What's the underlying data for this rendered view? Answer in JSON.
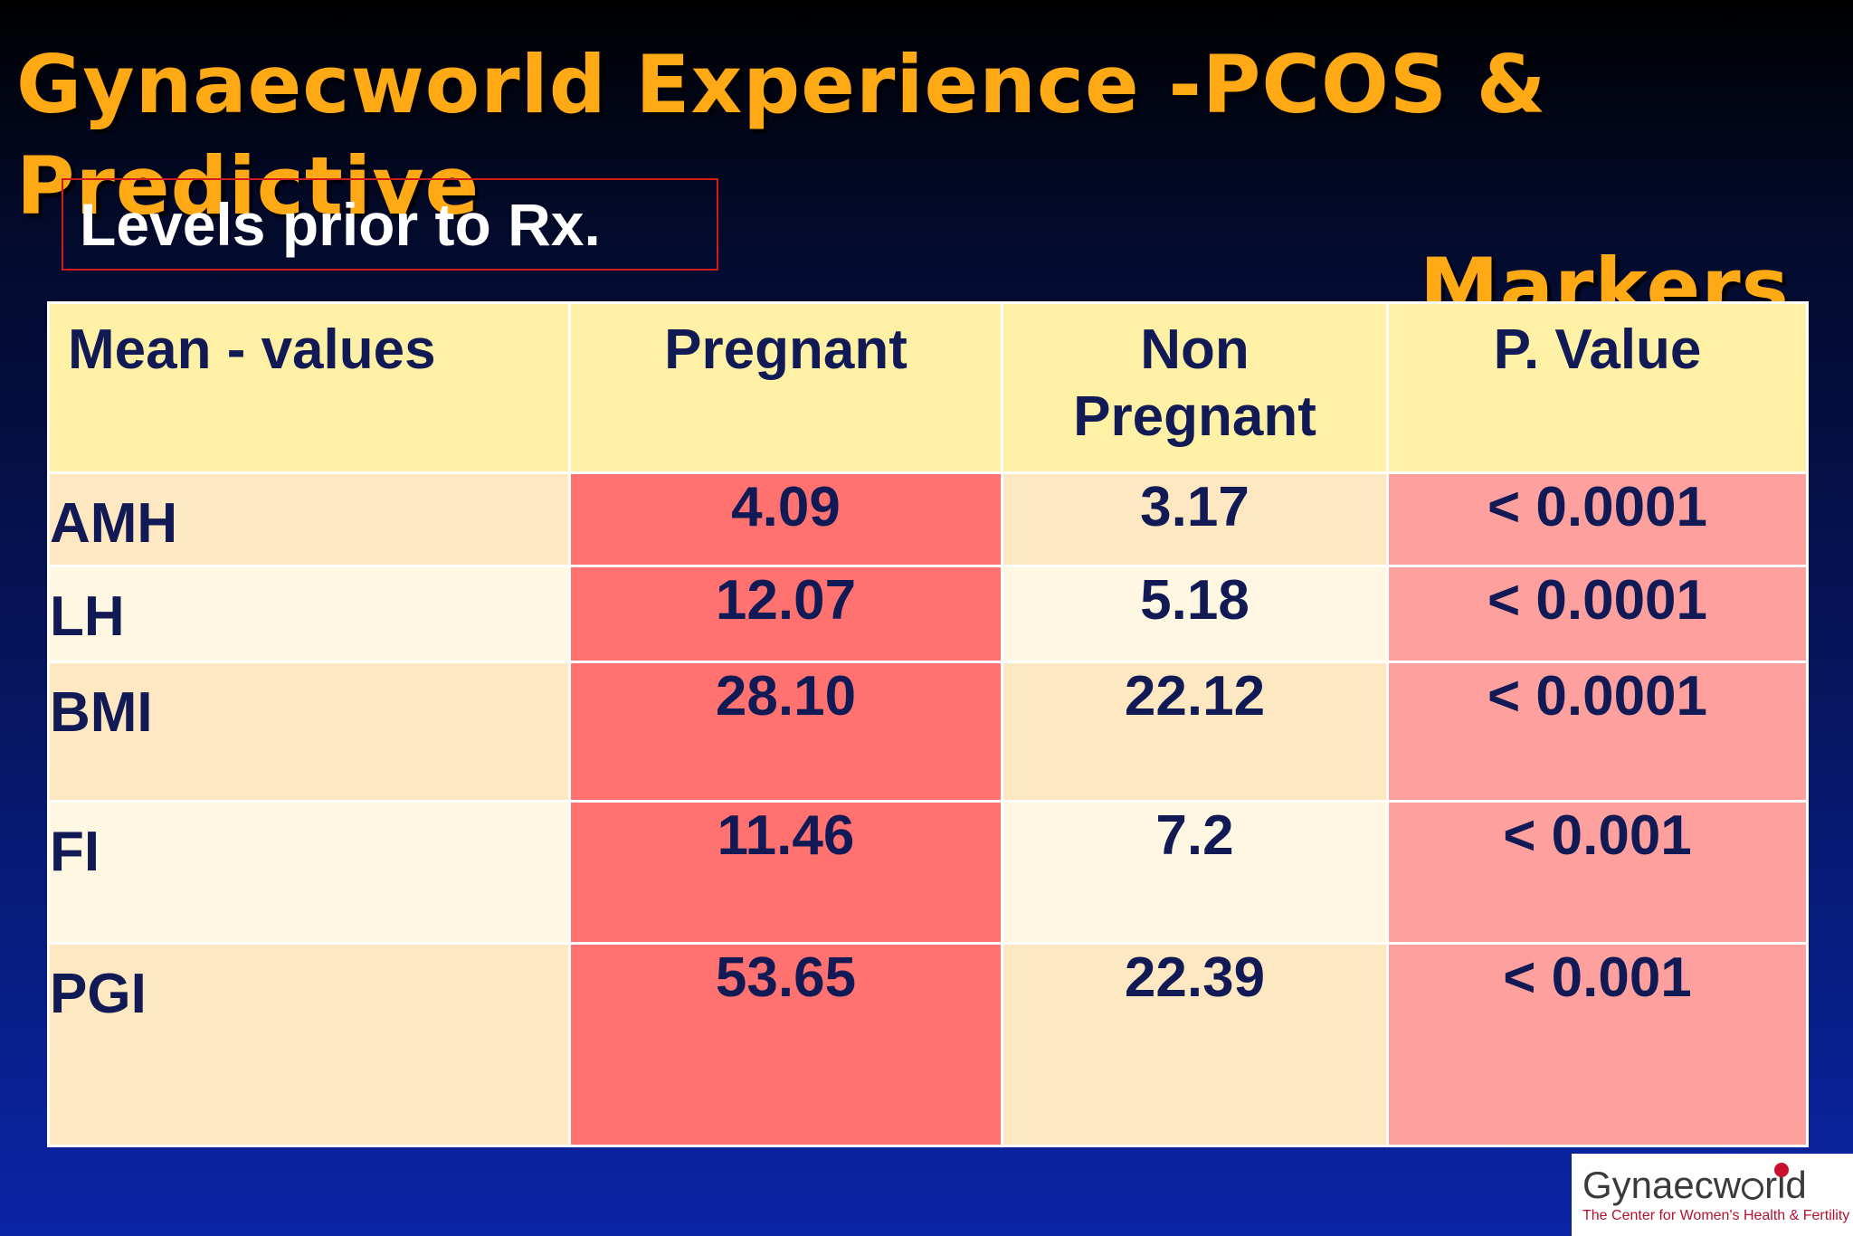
{
  "slide": {
    "title_line1": "Gynaecworld Experience -PCOS & Predictive",
    "title_line2": "Markers",
    "subtitle": "Levels prior to Rx.",
    "title_color": "#ffa914"
  },
  "table": {
    "headers": {
      "label": "Mean - values",
      "pregnant": "Pregnant",
      "non_pregnant_line1": "Non",
      "non_pregnant_line2": "Pregnant",
      "p_value": "P. Value"
    },
    "rows": [
      {
        "marker": "AMH",
        "pregnant": "4.09",
        "non_pregnant": "3.17",
        "p_value": "< 0.0001"
      },
      {
        "marker": "LH",
        "pregnant": "12.07",
        "non_pregnant": "5.18",
        "p_value": "< 0.0001"
      },
      {
        "marker": "BMI",
        "pregnant": "28.10",
        "non_pregnant": "22.12",
        "p_value": "< 0.0001"
      },
      {
        "marker": "FI",
        "pregnant": "11.46",
        "non_pregnant": "7.2",
        "p_value": "< 0.001"
      },
      {
        "marker": "PGI",
        "pregnant": "53.65",
        "non_pregnant": "22.39",
        "p_value": "< 0.001"
      }
    ],
    "colors": {
      "header_bg": "#fef1a6",
      "pregnant_bg": "#ff7270",
      "p_value_bg": "#fda09e",
      "row_odd_bg": "#fde8c2",
      "row_even_bg": "#fef7e2",
      "text": "#111a55"
    }
  },
  "logo": {
    "name_part1": "Gynaecw",
    "name_part2": "rld",
    "tagline": "The Center for Women's Health & Fertility",
    "dot_color": "#c8102e"
  }
}
